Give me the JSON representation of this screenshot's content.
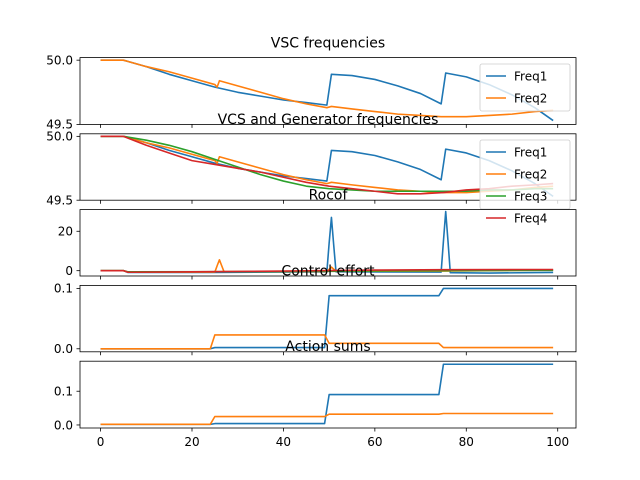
{
  "figure": {
    "colors": [
      "#1f77b4",
      "#ff7f0e",
      "#2ca02c",
      "#d62728"
    ]
  },
  "chart_data": [
    {
      "type": "line",
      "title": "VSC frequencies",
      "xlim": [
        -4.5,
        104
      ],
      "ylim": [
        49.5,
        50.02
      ],
      "yticks": [
        {
          "v": 50.0,
          "label": "50.0"
        },
        {
          "v": 49.5,
          "label": "49.5"
        }
      ],
      "show_xticklabels": false,
      "legend": {
        "position": "upper-right",
        "entries": [
          "Freq1",
          "Freq2"
        ]
      },
      "series": [
        {
          "name": "Freq1",
          "color": "#1f77b4",
          "points": [
            [
              0,
              50
            ],
            [
              5,
              50
            ],
            [
              10,
              49.95
            ],
            [
              15,
              49.89
            ],
            [
              20,
              49.84
            ],
            [
              25,
              49.79
            ],
            [
              30,
              49.75
            ],
            [
              35,
              49.72
            ],
            [
              40,
              49.69
            ],
            [
              45,
              49.67
            ],
            [
              49.5,
              49.65
            ],
            [
              50.5,
              49.89
            ],
            [
              55,
              49.88
            ],
            [
              60,
              49.85
            ],
            [
              65,
              49.8
            ],
            [
              70,
              49.74
            ],
            [
              74.5,
              49.66
            ],
            [
              75.5,
              49.9
            ],
            [
              80,
              49.87
            ],
            [
              85,
              49.81
            ],
            [
              90,
              49.73
            ],
            [
              95,
              49.63
            ],
            [
              99,
              49.53
            ]
          ]
        },
        {
          "name": "Freq2",
          "color": "#ff7f0e",
          "points": [
            [
              0,
              50
            ],
            [
              5,
              50
            ],
            [
              10,
              49.95
            ],
            [
              15,
              49.91
            ],
            [
              20,
              49.86
            ],
            [
              25,
              49.81
            ],
            [
              25.5,
              49.79
            ],
            [
              26,
              49.84
            ],
            [
              30,
              49.8
            ],
            [
              35,
              49.75
            ],
            [
              40,
              49.7
            ],
            [
              45,
              49.66
            ],
            [
              49.5,
              49.63
            ],
            [
              50.5,
              49.64
            ],
            [
              55,
              49.62
            ],
            [
              60,
              49.6
            ],
            [
              65,
              49.58
            ],
            [
              70,
              49.57
            ],
            [
              74.5,
              49.56
            ],
            [
              75.5,
              49.56
            ],
            [
              80,
              49.56
            ],
            [
              85,
              49.57
            ],
            [
              90,
              49.58
            ],
            [
              95,
              49.6
            ],
            [
              99,
              49.61
            ]
          ]
        }
      ]
    },
    {
      "type": "line",
      "title": "VCS and Generator frequencies",
      "xlim": [
        -4.5,
        104
      ],
      "ylim": [
        49.5,
        50.02
      ],
      "yticks": [
        {
          "v": 50.0,
          "label": "50.0"
        },
        {
          "v": 49.5,
          "label": "49.5"
        }
      ],
      "show_xticklabels": false,
      "legend": {
        "position": "upper-right",
        "entries": [
          "Freq1",
          "Freq2",
          "Freq3",
          "Freq4"
        ]
      },
      "series": [
        {
          "name": "Freq1",
          "color": "#1f77b4",
          "points": [
            [
              0,
              50
            ],
            [
              5,
              50
            ],
            [
              10,
              49.95
            ],
            [
              15,
              49.89
            ],
            [
              20,
              49.84
            ],
            [
              25,
              49.79
            ],
            [
              30,
              49.75
            ],
            [
              35,
              49.72
            ],
            [
              40,
              49.69
            ],
            [
              45,
              49.67
            ],
            [
              49.5,
              49.65
            ],
            [
              50.5,
              49.89
            ],
            [
              55,
              49.88
            ],
            [
              60,
              49.85
            ],
            [
              65,
              49.8
            ],
            [
              70,
              49.74
            ],
            [
              74.5,
              49.66
            ],
            [
              75.5,
              49.9
            ],
            [
              80,
              49.87
            ],
            [
              85,
              49.81
            ],
            [
              90,
              49.73
            ],
            [
              95,
              49.63
            ],
            [
              99,
              49.53
            ]
          ]
        },
        {
          "name": "Freq2",
          "color": "#ff7f0e",
          "points": [
            [
              0,
              50
            ],
            [
              5,
              50
            ],
            [
              10,
              49.95
            ],
            [
              15,
              49.91
            ],
            [
              20,
              49.86
            ],
            [
              25,
              49.81
            ],
            [
              25.5,
              49.79
            ],
            [
              26,
              49.84
            ],
            [
              30,
              49.8
            ],
            [
              35,
              49.75
            ],
            [
              40,
              49.7
            ],
            [
              45,
              49.66
            ],
            [
              49.5,
              49.63
            ],
            [
              50.5,
              49.64
            ],
            [
              55,
              49.62
            ],
            [
              60,
              49.6
            ],
            [
              65,
              49.58
            ],
            [
              70,
              49.57
            ],
            [
              74.5,
              49.56
            ],
            [
              75.5,
              49.56
            ],
            [
              80,
              49.56
            ],
            [
              85,
              49.57
            ],
            [
              90,
              49.58
            ],
            [
              95,
              49.6
            ],
            [
              99,
              49.61
            ]
          ]
        },
        {
          "name": "Freq3",
          "color": "#2ca02c",
          "points": [
            [
              0,
              50
            ],
            [
              5,
              50
            ],
            [
              10,
              49.97
            ],
            [
              15,
              49.93
            ],
            [
              20,
              49.88
            ],
            [
              25,
              49.82
            ],
            [
              30,
              49.76
            ],
            [
              35,
              49.7
            ],
            [
              40,
              49.65
            ],
            [
              45,
              49.61
            ],
            [
              50,
              49.59
            ],
            [
              55,
              49.58
            ],
            [
              60,
              49.57
            ],
            [
              65,
              49.57
            ],
            [
              70,
              49.57
            ],
            [
              75,
              49.57
            ],
            [
              80,
              49.57
            ],
            [
              85,
              49.58
            ],
            [
              90,
              49.58
            ],
            [
              95,
              49.59
            ],
            [
              99,
              49.59
            ]
          ]
        },
        {
          "name": "Freq4",
          "color": "#d62728",
          "points": [
            [
              0,
              50
            ],
            [
              5,
              50
            ],
            [
              10,
              49.93
            ],
            [
              15,
              49.87
            ],
            [
              20,
              49.81
            ],
            [
              25,
              49.78
            ],
            [
              30,
              49.75
            ],
            [
              35,
              49.72
            ],
            [
              40,
              49.68
            ],
            [
              45,
              49.64
            ],
            [
              50,
              49.61
            ],
            [
              55,
              49.59
            ],
            [
              60,
              49.57
            ],
            [
              65,
              49.55
            ],
            [
              70,
              49.55
            ],
            [
              75,
              49.56
            ],
            [
              80,
              49.58
            ],
            [
              85,
              49.59
            ],
            [
              90,
              49.61
            ],
            [
              95,
              49.62
            ],
            [
              99,
              49.63
            ]
          ]
        }
      ]
    },
    {
      "type": "line",
      "title": "Rocof",
      "xlim": [
        -4.5,
        104
      ],
      "ylim": [
        -2.7,
        31
      ],
      "yticks": [
        {
          "v": 20,
          "label": "20"
        },
        {
          "v": 0,
          "label": "0"
        }
      ],
      "show_xticklabels": false,
      "series": [
        {
          "name": "Freq1",
          "color": "#1f77b4",
          "points": [
            [
              0,
              0
            ],
            [
              5,
              0
            ],
            [
              6,
              -0.9
            ],
            [
              25,
              -0.9
            ],
            [
              49.5,
              -0.6
            ],
            [
              50,
              14
            ],
            [
              50.5,
              27
            ],
            [
              51,
              13
            ],
            [
              51.5,
              -0.6
            ],
            [
              74.5,
              -0.7
            ],
            [
              75,
              15
            ],
            [
              75.5,
              30
            ],
            [
              76,
              15
            ],
            [
              76.5,
              -1
            ],
            [
              85,
              -1.2
            ],
            [
              99,
              -0.9
            ]
          ]
        },
        {
          "name": "Freq2",
          "color": "#ff7f0e",
          "points": [
            [
              0,
              0
            ],
            [
              5,
              0
            ],
            [
              6,
              -0.7
            ],
            [
              25,
              -0.7
            ],
            [
              25.5,
              2.5
            ],
            [
              26,
              5.5
            ],
            [
              26.5,
              2.5
            ],
            [
              27,
              -0.5
            ],
            [
              49.5,
              -0.4
            ],
            [
              50.5,
              1.8
            ],
            [
              51.5,
              -0.3
            ],
            [
              75,
              -0.2
            ],
            [
              99,
              0.3
            ]
          ]
        },
        {
          "name": "Freq3",
          "color": "#2ca02c",
          "points": [
            [
              0,
              0
            ],
            [
              5,
              0
            ],
            [
              6,
              -0.6
            ],
            [
              30,
              -0.5
            ],
            [
              50,
              -0.3
            ],
            [
              75,
              0
            ],
            [
              99,
              0.2
            ]
          ]
        },
        {
          "name": "Freq4",
          "color": "#d62728",
          "points": [
            [
              0,
              0
            ],
            [
              5,
              0
            ],
            [
              6,
              -0.8
            ],
            [
              20,
              -0.6
            ],
            [
              40,
              -0.2
            ],
            [
              60,
              0.3
            ],
            [
              75,
              0.5
            ],
            [
              99,
              0.6
            ]
          ]
        }
      ]
    },
    {
      "type": "line",
      "title": "Control effort",
      "xlim": [
        -4.5,
        104
      ],
      "ylim": [
        -0.005,
        0.105
      ],
      "yticks": [
        {
          "v": 0.1,
          "label": "0.1"
        },
        {
          "v": 0.0,
          "label": "0.0"
        }
      ],
      "show_xticklabels": false,
      "series": [
        {
          "name": "Freq1",
          "color": "#1f77b4",
          "points": [
            [
              0,
              0
            ],
            [
              24,
              0
            ],
            [
              25,
              0.002
            ],
            [
              49,
              0.002
            ],
            [
              50,
              0.088
            ],
            [
              74,
              0.088
            ],
            [
              75,
              0.1
            ],
            [
              99,
              0.1
            ]
          ]
        },
        {
          "name": "Freq2",
          "color": "#ff7f0e",
          "points": [
            [
              0,
              0
            ],
            [
              24,
              0
            ],
            [
              25,
              0.023
            ],
            [
              49,
              0.023
            ],
            [
              50,
              0.009
            ],
            [
              74,
              0.009
            ],
            [
              75,
              0.002
            ],
            [
              99,
              0.002
            ]
          ]
        }
      ]
    },
    {
      "type": "line",
      "title": "Action sums",
      "xlim": [
        -4.5,
        104
      ],
      "ylim": [
        -0.009,
        0.189
      ],
      "yticks": [
        {
          "v": 0.1,
          "label": "0.1"
        },
        {
          "v": 0.0,
          "label": "0.0"
        }
      ],
      "show_xticklabels": true,
      "xticks": [
        {
          "v": 0,
          "label": "0"
        },
        {
          "v": 20,
          "label": "20"
        },
        {
          "v": 40,
          "label": "40"
        },
        {
          "v": 60,
          "label": "60"
        },
        {
          "v": 80,
          "label": "80"
        },
        {
          "v": 100,
          "label": "100"
        }
      ],
      "series": [
        {
          "name": "Freq1",
          "color": "#1f77b4",
          "points": [
            [
              0,
              0.002
            ],
            [
              24,
              0.002
            ],
            [
              25,
              0.004
            ],
            [
              49,
              0.004
            ],
            [
              50,
              0.09
            ],
            [
              74,
              0.09
            ],
            [
              75,
              0.18
            ],
            [
              99,
              0.18
            ]
          ]
        },
        {
          "name": "Freq2",
          "color": "#ff7f0e",
          "points": [
            [
              0,
              0.002
            ],
            [
              24,
              0.002
            ],
            [
              25,
              0.025
            ],
            [
              49,
              0.025
            ],
            [
              50,
              0.032
            ],
            [
              74,
              0.032
            ],
            [
              75,
              0.034
            ],
            [
              99,
              0.034
            ]
          ]
        }
      ]
    }
  ]
}
